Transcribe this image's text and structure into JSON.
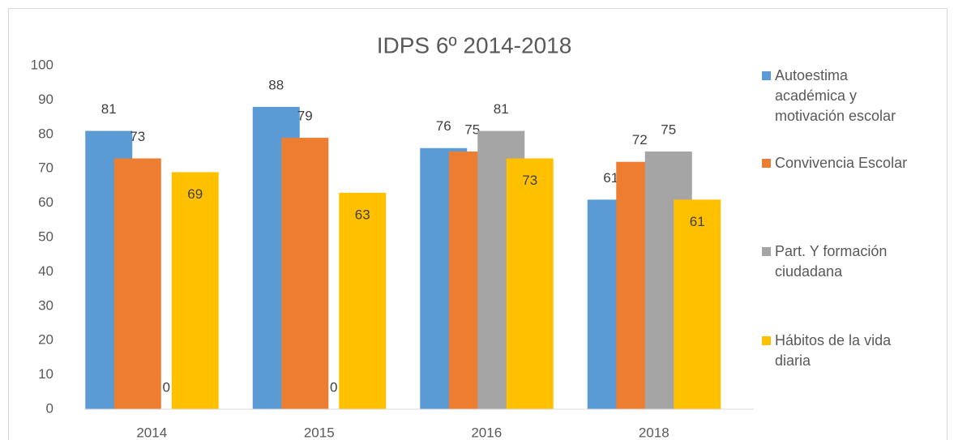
{
  "chart_data": {
    "type": "bar",
    "title": "IDPS 6º 2014-2018",
    "categories": [
      "2014",
      "2015",
      "2016",
      "2018"
    ],
    "series": [
      {
        "name": "Autoestima académica y motivación escolar",
        "color": "#5b9bd5",
        "values": [
          81,
          88,
          76,
          61
        ]
      },
      {
        "name": "Convivencia Escolar",
        "color": "#ed7d31",
        "values": [
          73,
          79,
          75,
          72
        ]
      },
      {
        "name": "Part. Y formación ciudadana",
        "color": "#a5a5a5",
        "values": [
          0,
          0,
          81,
          75
        ]
      },
      {
        "name": "Hábitos de la vida diaria",
        "color": "#ffc000",
        "values": [
          69,
          63,
          73,
          61
        ]
      }
    ],
    "ylim": [
      0,
      100
    ],
    "yticks": [
      0,
      10,
      20,
      30,
      40,
      50,
      60,
      70,
      80,
      90,
      100
    ],
    "grid": false,
    "legend": "right"
  }
}
